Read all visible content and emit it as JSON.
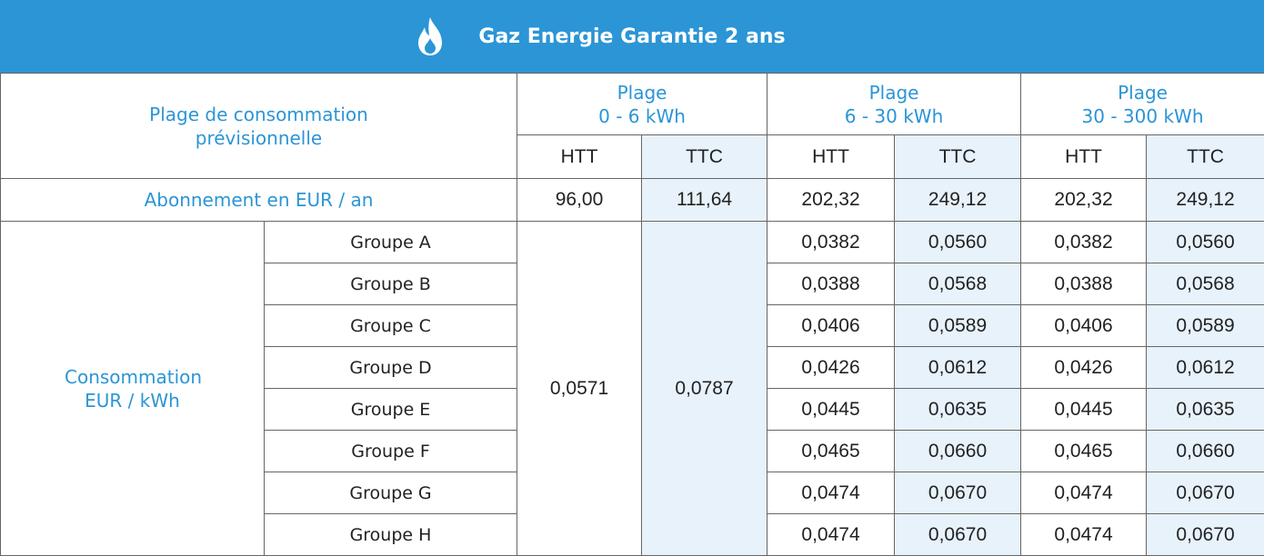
{
  "title": "Gaz Energie Garantie 2 ans",
  "header": {
    "label": "Plage de consommation prévisionnelle",
    "plages": [
      [
        "Plage",
        "0 - 6 kWh"
      ],
      [
        "Plage",
        "6 - 30 kWh"
      ],
      [
        "Plage",
        "30 - 300 kWh"
      ]
    ],
    "sub": [
      "HTT",
      "TTC",
      "HTT",
      "TTC",
      "HTT",
      "TTC"
    ]
  },
  "abonnement": {
    "label": "Abonnement en EUR / an",
    "values": [
      "96,00",
      "111,64",
      "202,32",
      "249,12",
      "202,32",
      "249,12"
    ]
  },
  "consommation": {
    "label": "Consommation EUR / kWh",
    "first": [
      "0,0571",
      "0,0787"
    ],
    "groups": [
      {
        "name": "Groupe A",
        "values": [
          "0,0382",
          "0,0560",
          "0,0382",
          "0,0560"
        ]
      },
      {
        "name": "Groupe B",
        "values": [
          "0,0388",
          "0,0568",
          "0,0388",
          "0,0568"
        ]
      },
      {
        "name": "Groupe C",
        "values": [
          "0,0406",
          "0,0589",
          "0,0406",
          "0,0589"
        ]
      },
      {
        "name": "Groupe D",
        "values": [
          "0,0426",
          "0,0612",
          "0,0426",
          "0,0612"
        ]
      },
      {
        "name": "Groupe E",
        "values": [
          "0,0445",
          "0,0635",
          "0,0445",
          "0,0635"
        ]
      },
      {
        "name": "Groupe F",
        "values": [
          "0,0465",
          "0,0660",
          "0,0465",
          "0,0660"
        ]
      },
      {
        "name": "Groupe G",
        "values": [
          "0,0474",
          "0,0670",
          "0,0474",
          "0,0670"
        ]
      },
      {
        "name": "Groupe H",
        "values": [
          "0,0474",
          "0,0670",
          "0,0474",
          "0,0670"
        ]
      }
    ]
  }
}
